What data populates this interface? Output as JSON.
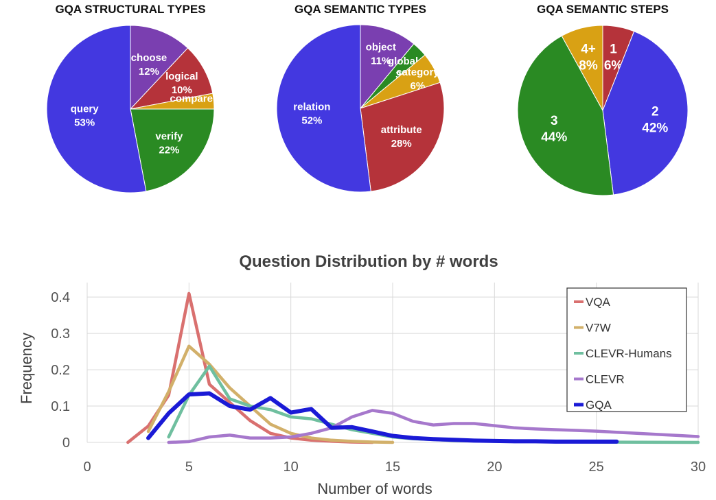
{
  "chart_data": [
    {
      "type": "pie",
      "title": "GQA STRUCTURAL TYPES",
      "slices": [
        {
          "label": "choose",
          "pct_label": "12%",
          "value": 12,
          "color": "#7a3fb0"
        },
        {
          "label": "logical",
          "pct_label": "10%",
          "value": 10,
          "color": "#b5333a"
        },
        {
          "label": "compare",
          "pct_label": "3%",
          "value": 3,
          "color": "#d9a114"
        },
        {
          "label": "verify",
          "pct_label": "22%",
          "value": 22,
          "color": "#2a8a23"
        },
        {
          "label": "query",
          "pct_label": "53%",
          "value": 53,
          "color": "#4338e0"
        }
      ]
    },
    {
      "type": "pie",
      "title": "GQA SEMANTIC TYPES",
      "slices": [
        {
          "label": "object",
          "pct_label": "11%",
          "value": 11,
          "color": "#7a3fb0"
        },
        {
          "label": "global",
          "pct_label": "3%",
          "value": 3,
          "color": "#2a8a23"
        },
        {
          "label": "category",
          "pct_label": "6%",
          "value": 6,
          "color": "#d9a114"
        },
        {
          "label": "attribute",
          "pct_label": "28%",
          "value": 28,
          "color": "#b5333a"
        },
        {
          "label": "relation",
          "pct_label": "52%",
          "value": 52,
          "color": "#4338e0"
        }
      ]
    },
    {
      "type": "pie",
      "title": "GQA SEMANTIC STEPS",
      "slices": [
        {
          "label": "1",
          "pct_label": "6%",
          "value": 6,
          "color": "#b5333a"
        },
        {
          "label": "2",
          "pct_label": "42%",
          "value": 42,
          "color": "#4338e0"
        },
        {
          "label": "3",
          "pct_label": "44%",
          "value": 44,
          "color": "#2a8a23"
        },
        {
          "label": "4+",
          "pct_label": "8%",
          "value": 8,
          "color": "#d9a114"
        }
      ]
    },
    {
      "type": "line",
      "title": "Question Distribution by # words",
      "xlabel": "Number of words",
      "ylabel": "Frequency",
      "xlim": [
        0,
        30
      ],
      "ylim": [
        0,
        0.4
      ],
      "x_ticks": [
        "0",
        "5",
        "10",
        "15",
        "20",
        "25",
        "30"
      ],
      "y_ticks": [
        "0",
        "0.1",
        "0.2",
        "0.3",
        "0.4"
      ],
      "grid": true,
      "legend_position": "top-right",
      "series": [
        {
          "name": "VQA",
          "color": "#d9706f",
          "points": [
            [
              2,
              0
            ],
            [
              3,
              0.045
            ],
            [
              4,
              0.13
            ],
            [
              5,
              0.41
            ],
            [
              6,
              0.16
            ],
            [
              7,
              0.11
            ],
            [
              8,
              0.06
            ],
            [
              9,
              0.025
            ],
            [
              10,
              0.012
            ],
            [
              11,
              0.006
            ],
            [
              12,
              0.003
            ],
            [
              13,
              0.001
            ],
            [
              14,
              0
            ]
          ]
        },
        {
          "name": "V7W",
          "color": "#d2b06a",
          "points": [
            [
              3,
              0.03
            ],
            [
              4,
              0.14
            ],
            [
              5,
              0.265
            ],
            [
              6,
              0.215
            ],
            [
              7,
              0.15
            ],
            [
              8,
              0.1
            ],
            [
              9,
              0.05
            ],
            [
              10,
              0.025
            ],
            [
              11,
              0.012
            ],
            [
              12,
              0.006
            ],
            [
              13,
              0.003
            ],
            [
              14,
              0.001
            ],
            [
              15,
              0
            ]
          ]
        },
        {
          "name": "CLEVR-Humans",
          "color": "#6fbf9f",
          "points": [
            [
              4,
              0.015
            ],
            [
              5,
              0.13
            ],
            [
              6,
              0.21
            ],
            [
              7,
              0.12
            ],
            [
              8,
              0.1
            ],
            [
              9,
              0.09
            ],
            [
              10,
              0.07
            ],
            [
              11,
              0.065
            ],
            [
              12,
              0.05
            ],
            [
              13,
              0.035
            ],
            [
              14,
              0.025
            ],
            [
              15,
              0.015
            ],
            [
              16,
              0.01
            ],
            [
              17,
              0.008
            ],
            [
              18,
              0.005
            ],
            [
              20,
              0.003
            ],
            [
              25,
              0.001
            ],
            [
              30,
              0
            ]
          ]
        },
        {
          "name": "CLEVR",
          "color": "#a678cc",
          "points": [
            [
              4,
              0
            ],
            [
              5,
              0.002
            ],
            [
              6,
              0.015
            ],
            [
              7,
              0.02
            ],
            [
              8,
              0.012
            ],
            [
              9,
              0.012
            ],
            [
              10,
              0.015
            ],
            [
              11,
              0.025
            ],
            [
              12,
              0.04
            ],
            [
              13,
              0.07
            ],
            [
              14,
              0.088
            ],
            [
              15,
              0.08
            ],
            [
              16,
              0.058
            ],
            [
              17,
              0.048
            ],
            [
              18,
              0.052
            ],
            [
              19,
              0.052
            ],
            [
              20,
              0.046
            ],
            [
              21,
              0.04
            ],
            [
              22,
              0.037
            ],
            [
              23,
              0.035
            ],
            [
              24,
              0.033
            ],
            [
              25,
              0.031
            ],
            [
              26,
              0.028
            ],
            [
              27,
              0.025
            ],
            [
              28,
              0.022
            ],
            [
              29,
              0.019
            ],
            [
              30,
              0.016
            ]
          ]
        },
        {
          "name": "GQA",
          "color": "#1a1ad6",
          "points": [
            [
              3,
              0.012
            ],
            [
              4,
              0.08
            ],
            [
              5,
              0.132
            ],
            [
              6,
              0.135
            ],
            [
              7,
              0.1
            ],
            [
              8,
              0.09
            ],
            [
              9,
              0.122
            ],
            [
              10,
              0.082
            ],
            [
              11,
              0.092
            ],
            [
              12,
              0.04
            ],
            [
              13,
              0.042
            ],
            [
              14,
              0.03
            ],
            [
              15,
              0.018
            ],
            [
              16,
              0.012
            ],
            [
              17,
              0.009
            ],
            [
              18,
              0.007
            ],
            [
              19,
              0.005
            ],
            [
              20,
              0.004
            ],
            [
              21,
              0.003
            ],
            [
              22,
              0.003
            ],
            [
              23,
              0.002
            ],
            [
              24,
              0.002
            ],
            [
              25,
              0.002
            ],
            [
              26,
              0.002
            ]
          ]
        }
      ]
    }
  ]
}
